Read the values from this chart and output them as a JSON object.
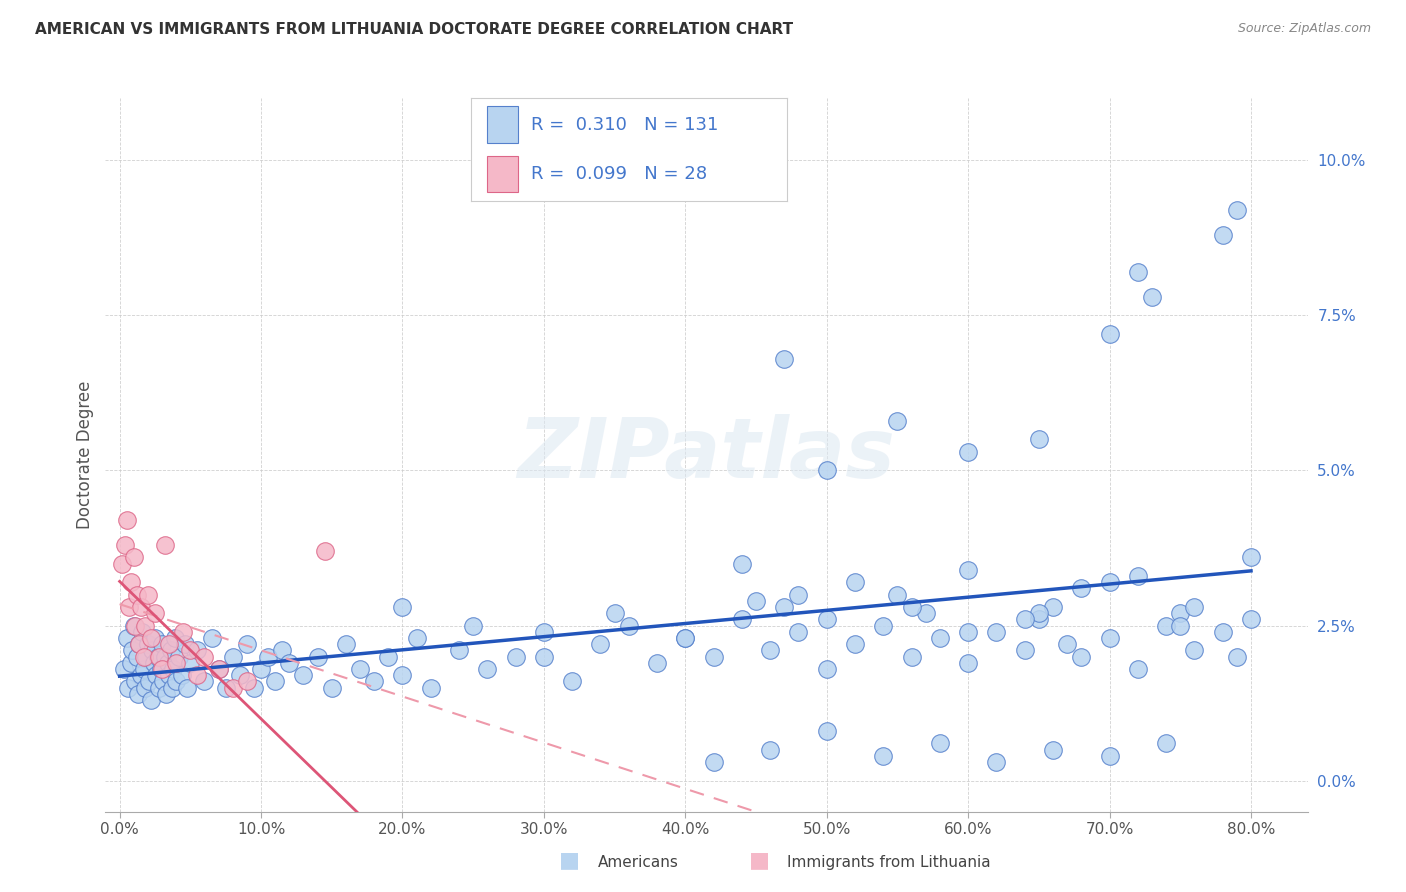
{
  "title": "AMERICAN VS IMMIGRANTS FROM LITHUANIA DOCTORATE DEGREE CORRELATION CHART",
  "source": "Source: ZipAtlas.com",
  "ylabel": "Doctorate Degree",
  "xlim": [
    -1.0,
    84.0
  ],
  "ylim": [
    -0.5,
    11.0
  ],
  "xlabel_ticks": [
    0,
    10,
    20,
    30,
    40,
    50,
    60,
    70,
    80
  ],
  "ylabel_ticks": [
    0.0,
    2.5,
    5.0,
    7.5,
    10.0
  ],
  "americans_R": 0.31,
  "americans_N": 131,
  "lithuania_R": 0.099,
  "lithuania_N": 28,
  "american_fill": "#b8d4f0",
  "american_edge": "#5580cc",
  "american_line": "#2255bb",
  "lithuania_fill": "#f5b8c8",
  "lithuania_edge": "#dd6688",
  "lithuania_solid_line": "#dd5577",
  "lithuania_dash_line": "#ee99aa",
  "legend_american": "Americans",
  "legend_lithuania": "Immigrants from Lithuania",
  "watermark": "ZIPatlas",
  "bg_color": "#ffffff",
  "grid_color": "#cccccc",
  "title_color": "#333333",
  "yaxis_tick_color": "#4477cc",
  "xaxis_tick_color": "#555555",
  "am_x": [
    0.3,
    0.5,
    0.6,
    0.8,
    0.9,
    1.0,
    1.1,
    1.2,
    1.3,
    1.4,
    1.5,
    1.6,
    1.7,
    1.8,
    1.9,
    2.0,
    2.1,
    2.2,
    2.3,
    2.4,
    2.5,
    2.6,
    2.7,
    2.8,
    2.9,
    3.0,
    3.1,
    3.2,
    3.3,
    3.4,
    3.5,
    3.6,
    3.7,
    3.8,
    3.9,
    4.0,
    4.2,
    4.4,
    4.6,
    4.8,
    5.0,
    5.5,
    6.0,
    6.5,
    7.0,
    7.5,
    8.0,
    8.5,
    9.0,
    9.5,
    10.0,
    10.5,
    11.0,
    11.5,
    12.0,
    13.0,
    14.0,
    15.0,
    16.0,
    17.0,
    18.0,
    19.0,
    20.0,
    21.0,
    22.0,
    24.0,
    26.0,
    28.0,
    30.0,
    32.0,
    34.0,
    36.0,
    38.0,
    40.0,
    42.0,
    44.0,
    46.0,
    47.0,
    48.0,
    50.0,
    52.0,
    54.0,
    56.0,
    57.0,
    58.0,
    60.0,
    62.0,
    64.0,
    65.0,
    66.0,
    67.0,
    68.0,
    70.0,
    72.0,
    74.0,
    75.0,
    76.0,
    78.0,
    79.0,
    80.0,
    20.0,
    25.0,
    30.0,
    35.0,
    40.0,
    45.0,
    50.0,
    55.0,
    60.0,
    65.0,
    70.0,
    75.0,
    44.0,
    48.0,
    52.0,
    56.0,
    60.0,
    64.0,
    68.0,
    72.0,
    76.0,
    80.0,
    42.0,
    46.0,
    50.0,
    54.0,
    58.0,
    62.0,
    66.0,
    70.0,
    74.0
  ],
  "am_y": [
    1.8,
    2.3,
    1.5,
    1.9,
    2.1,
    2.5,
    1.6,
    2.0,
    1.4,
    2.2,
    1.7,
    2.4,
    1.8,
    1.5,
    2.0,
    2.2,
    1.6,
    1.3,
    2.1,
    1.9,
    2.3,
    1.7,
    2.0,
    1.5,
    1.8,
    2.2,
    1.6,
    2.0,
    1.4,
    1.9,
    1.7,
    2.1,
    1.5,
    1.8,
    2.3,
    1.6,
    2.0,
    1.7,
    2.2,
    1.5,
    1.9,
    2.1,
    1.6,
    2.3,
    1.8,
    1.5,
    2.0,
    1.7,
    2.2,
    1.5,
    1.8,
    2.0,
    1.6,
    2.1,
    1.9,
    1.7,
    2.0,
    1.5,
    2.2,
    1.8,
    1.6,
    2.0,
    1.7,
    2.3,
    1.5,
    2.1,
    1.8,
    2.0,
    2.4,
    1.6,
    2.2,
    2.5,
    1.9,
    2.3,
    2.0,
    2.6,
    2.1,
    2.8,
    2.4,
    1.8,
    2.2,
    2.5,
    2.0,
    2.7,
    2.3,
    1.9,
    2.4,
    2.1,
    2.6,
    2.8,
    2.2,
    2.0,
    2.3,
    1.8,
    2.5,
    2.7,
    2.1,
    2.4,
    2.0,
    2.6,
    2.8,
    2.5,
    2.0,
    2.7,
    2.3,
    2.9,
    2.6,
    3.0,
    2.4,
    2.7,
    3.2,
    2.5,
    3.5,
    3.0,
    3.2,
    2.8,
    3.4,
    2.6,
    3.1,
    3.3,
    2.8,
    3.6,
    0.3,
    0.5,
    0.8,
    0.4,
    0.6,
    0.3,
    0.5,
    0.4,
    0.6
  ],
  "lt_x": [
    0.2,
    0.4,
    0.5,
    0.7,
    0.8,
    1.0,
    1.1,
    1.2,
    1.4,
    1.5,
    1.7,
    1.8,
    2.0,
    2.2,
    2.5,
    2.8,
    3.0,
    3.5,
    4.0,
    4.5,
    5.0,
    5.5,
    6.0,
    7.0,
    8.0,
    9.0,
    14.5,
    3.2
  ],
  "lt_y": [
    3.5,
    3.8,
    4.2,
    2.8,
    3.2,
    3.6,
    2.5,
    3.0,
    2.2,
    2.8,
    2.0,
    2.5,
    3.0,
    2.3,
    2.7,
    2.0,
    1.8,
    2.2,
    1.9,
    2.4,
    2.1,
    1.7,
    2.0,
    1.8,
    1.5,
    1.6,
    3.7,
    3.8
  ]
}
